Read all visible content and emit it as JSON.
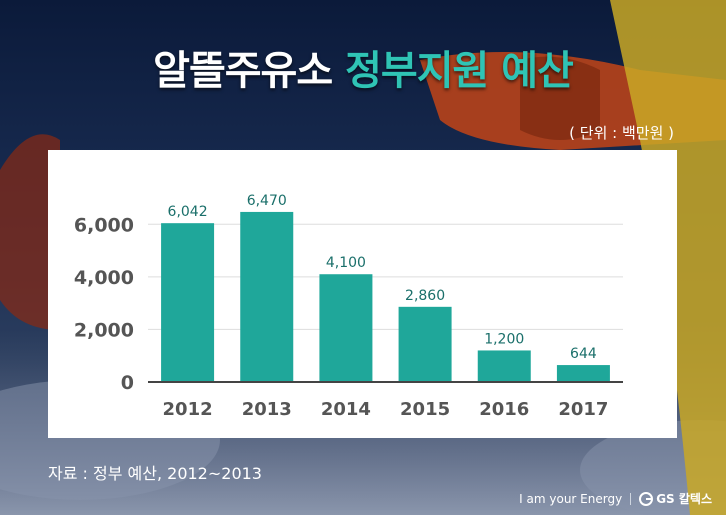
{
  "header": {
    "title_white": "알뜰주유소",
    "title_teal": "정부지원 예산",
    "unit": "( 단위 : 백만원 )"
  },
  "footer": {
    "source": "자료 : 정부 예산, 2012~2013",
    "slogan": "I am your Energy",
    "brand": "GS 칼텍스"
  },
  "colors": {
    "bar": "#1fa79a",
    "title_accent": "#2fc4b5",
    "value_label": "#1a6f6a",
    "axis_text": "#555555",
    "grid": "#dddddd"
  },
  "chart_data": {
    "type": "bar",
    "categories": [
      "2012",
      "2013",
      "2014",
      "2015",
      "2016",
      "2017"
    ],
    "values": [
      6042,
      6470,
      4100,
      2860,
      1200,
      644
    ],
    "value_labels": [
      "6,042",
      "6,470",
      "4,100",
      "2,860",
      "1,200",
      "644"
    ],
    "yticks": [
      0,
      2000,
      4000,
      6000
    ],
    "ytick_labels": [
      "0",
      "2,000",
      "4,000",
      "6,000"
    ],
    "ylim": [
      0,
      7000
    ],
    "grid": true
  }
}
